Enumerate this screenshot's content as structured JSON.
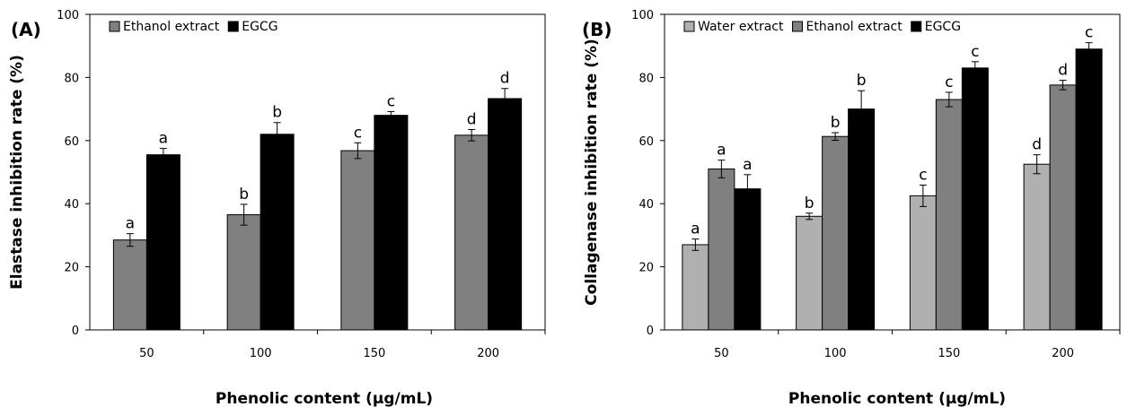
{
  "chart_data": [
    {
      "type": "bar",
      "panel_label": "(A)",
      "categories": [
        "50",
        "100",
        "150",
        "200"
      ],
      "series": [
        {
          "name": "Ethanol extract",
          "color": "#808080",
          "values": [
            28.5,
            36.5,
            56.8,
            61.7
          ],
          "errors": [
            2.0,
            3.3,
            2.5,
            1.8
          ],
          "letters": [
            "a",
            "b",
            "c",
            "d"
          ]
        },
        {
          "name": "EGCG",
          "color": "#000000",
          "values": [
            55.5,
            62.0,
            68.0,
            73.3
          ],
          "errors": [
            2.0,
            3.7,
            1.2,
            3.2
          ],
          "letters": [
            "a",
            "b",
            "c",
            "d"
          ]
        }
      ],
      "xlabel": "Phenolic  content (μg/mL)",
      "ylabel": "Elastase inhibition rate (%)",
      "ylim": [
        0,
        100
      ],
      "yticks": [
        "0",
        "20",
        "40",
        "60",
        "80",
        "100"
      ],
      "grid": false,
      "legend": "top-left"
    },
    {
      "type": "bar",
      "panel_label": "(B)",
      "categories": [
        "50",
        "100",
        "150",
        "200"
      ],
      "series": [
        {
          "name": "Water extract",
          "color": "#b0b0b0",
          "values": [
            27.0,
            36.0,
            42.5,
            52.5
          ],
          "errors": [
            1.8,
            1.0,
            3.4,
            3.0
          ],
          "letters": [
            "a",
            "b",
            "c",
            "d"
          ]
        },
        {
          "name": "Ethanol extract",
          "color": "#808080",
          "values": [
            51.0,
            61.3,
            73.0,
            77.6
          ],
          "errors": [
            2.8,
            1.2,
            2.3,
            1.5
          ],
          "letters": [
            "a",
            "b",
            "c",
            "d"
          ]
        },
        {
          "name": "EGCG",
          "color": "#000000",
          "values": [
            44.7,
            70.0,
            83.0,
            89.0
          ],
          "errors": [
            4.5,
            5.8,
            2.0,
            2.0
          ],
          "letters": [
            "a",
            "b",
            "c",
            "c"
          ]
        }
      ],
      "xlabel": "Phenolic  content (μg/mL)",
      "ylabel": "Collagenase inhibition rate (%)",
      "ylim": [
        0,
        100
      ],
      "yticks": [
        "0",
        "20",
        "40",
        "60",
        "80",
        "100"
      ],
      "grid": false,
      "legend": "top-left"
    }
  ]
}
